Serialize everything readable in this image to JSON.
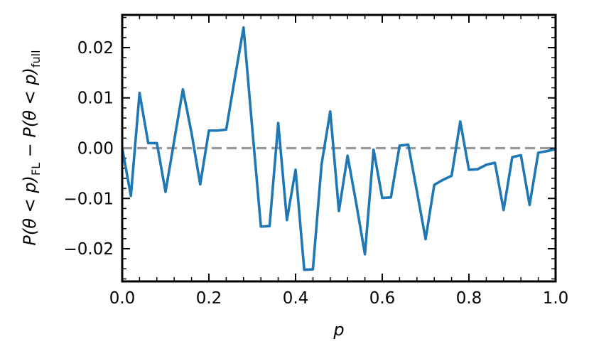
{
  "chart_data": {
    "type": "line",
    "xlabel": "p",
    "ylabel_parts": {
      "t1": "P(θ < p)",
      "sub1": "FL",
      "op": " − ",
      "t2": "P(θ < p)",
      "sub2": "full"
    },
    "xlim": [
      0.0,
      1.0
    ],
    "ylim": [
      -0.0265,
      0.0265
    ],
    "x_ticks": [
      0.0,
      0.2,
      0.4,
      0.6,
      0.8,
      1.0
    ],
    "x_tick_labels": [
      "0.0",
      "0.2",
      "0.4",
      "0.6",
      "0.8",
      "1.0"
    ],
    "y_ticks": [
      -0.02,
      -0.01,
      0.0,
      0.01,
      0.02
    ],
    "y_tick_labels": [
      "−0.02",
      "−0.01",
      "0.00",
      "0.01",
      "0.02"
    ],
    "reference_line": {
      "y": 0.0,
      "style": "dashed",
      "color": "#999999"
    },
    "series": [
      {
        "color": "#1f77b4",
        "x": [
          0.0,
          0.02,
          0.04,
          0.06,
          0.08,
          0.1,
          0.12,
          0.14,
          0.16,
          0.18,
          0.2,
          0.22,
          0.24,
          0.26,
          0.28,
          0.3,
          0.32,
          0.34,
          0.36,
          0.38,
          0.4,
          0.42,
          0.44,
          0.46,
          0.48,
          0.5,
          0.52,
          0.54,
          0.56,
          0.58,
          0.6,
          0.62,
          0.64,
          0.66,
          0.68,
          0.7,
          0.72,
          0.74,
          0.76,
          0.78,
          0.8,
          0.82,
          0.84,
          0.86,
          0.88,
          0.9,
          0.92,
          0.94,
          0.96,
          0.98,
          1.0
        ],
        "y": [
          0.0,
          -0.0095,
          0.011,
          0.001,
          0.001,
          -0.0087,
          0.0015,
          0.0117,
          0.003,
          -0.0072,
          0.0035,
          0.0035,
          0.0037,
          0.014,
          0.024,
          0.004,
          -0.0156,
          -0.0155,
          0.005,
          -0.0143,
          -0.0043,
          -0.0242,
          -0.0241,
          -0.0032,
          0.0073,
          -0.0125,
          -0.0015,
          -0.011,
          -0.0211,
          -0.0003,
          -0.0099,
          -0.0098,
          0.0005,
          0.0007,
          -0.0086,
          -0.0181,
          -0.0073,
          -0.0063,
          -0.0055,
          0.0053,
          -0.0043,
          -0.0042,
          -0.0033,
          -0.0029,
          -0.0123,
          -0.0018,
          -0.0014,
          -0.0113,
          -0.0009,
          -0.0006,
          -0.0002
        ]
      }
    ]
  }
}
